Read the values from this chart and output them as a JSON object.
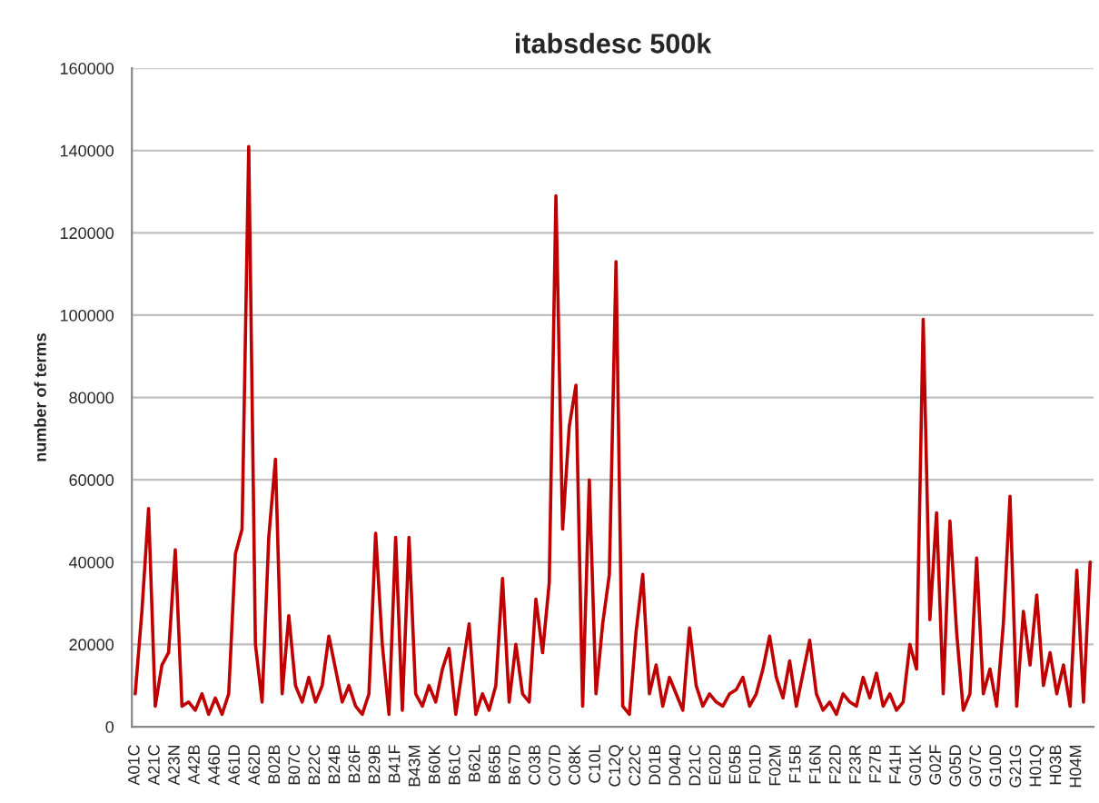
{
  "chart_data": {
    "type": "line",
    "title": "itabsdesc 500k",
    "ylabel": "number of terms",
    "categories": [
      "A01C",
      null,
      null,
      "A21C",
      null,
      null,
      "A23N",
      null,
      null,
      "A42B",
      null,
      null,
      "A46D",
      null,
      null,
      "A61D",
      null,
      null,
      "A62D",
      null,
      null,
      "B02B",
      null,
      null,
      "B07C",
      null,
      null,
      "B22C",
      null,
      null,
      "B24B",
      null,
      null,
      "B26F",
      null,
      null,
      "B29B",
      null,
      null,
      "B41F",
      null,
      null,
      "B43M",
      null,
      null,
      "B60K",
      null,
      null,
      "B61C",
      null,
      null,
      "B62L",
      null,
      null,
      "B65B",
      null,
      null,
      "B67D",
      null,
      null,
      "C03B",
      null,
      null,
      "C07D",
      null,
      null,
      "C08K",
      null,
      null,
      "C10L",
      null,
      null,
      "C12Q",
      null,
      null,
      "C22C",
      null,
      null,
      "D01B",
      null,
      null,
      "D04D",
      null,
      null,
      "D21C",
      null,
      null,
      "E02D",
      null,
      null,
      "E05B",
      null,
      null,
      "F01D",
      null,
      null,
      "F02M",
      null,
      null,
      "F15B",
      null,
      null,
      "F16N",
      null,
      null,
      "F22D",
      null,
      null,
      "F23R",
      null,
      null,
      "F27B",
      null,
      null,
      "F41H",
      null,
      null,
      "G01K",
      null,
      null,
      "G02F",
      null,
      null,
      "G05D",
      null,
      null,
      "G07C",
      null,
      null,
      "G10D",
      null,
      null,
      "G21G",
      null,
      null,
      "H01Q",
      null,
      null,
      "H03B",
      null,
      null,
      "H04M",
      null,
      null
    ],
    "series": [
      {
        "color": "#c00000",
        "values": [
          8000,
          28000,
          53000,
          5000,
          15000,
          18000,
          43000,
          5000,
          6000,
          4000,
          8000,
          3000,
          7000,
          3000,
          8000,
          42000,
          48000,
          141000,
          20000,
          6000,
          46000,
          65000,
          8000,
          27000,
          10000,
          6000,
          12000,
          6000,
          10000,
          22000,
          14000,
          6000,
          10000,
          5000,
          3000,
          8000,
          47000,
          20000,
          3000,
          46000,
          4000,
          46000,
          8000,
          5000,
          10000,
          6000,
          14000,
          19000,
          3000,
          14000,
          25000,
          3000,
          8000,
          4000,
          10000,
          36000,
          6000,
          20000,
          8000,
          6000,
          31000,
          18000,
          35000,
          129000,
          48000,
          73000,
          83000,
          5000,
          60000,
          8000,
          25000,
          37000,
          113000,
          5000,
          3000,
          23000,
          37000,
          8000,
          15000,
          5000,
          12000,
          8000,
          4000,
          24000,
          10000,
          5000,
          8000,
          6000,
          5000,
          8000,
          9000,
          12000,
          5000,
          8000,
          14000,
          22000,
          12000,
          7000,
          16000,
          5000,
          13000,
          21000,
          8000,
          4000,
          6000,
          3000,
          8000,
          6000,
          5000,
          12000,
          7000,
          13000,
          5000,
          8000,
          4000,
          6000,
          20000,
          14000,
          99000,
          26000,
          52000,
          8000,
          50000,
          23000,
          4000,
          8000,
          41000,
          8000,
          14000,
          5000,
          25000,
          56000,
          5000,
          28000,
          15000,
          32000,
          10000,
          18000,
          8000,
          15000,
          5000,
          38000,
          6000,
          40000
        ]
      }
    ],
    "ylim": [
      0,
      160000
    ],
    "yticks": [
      0,
      20000,
      40000,
      60000,
      80000,
      100000,
      120000,
      140000,
      160000
    ],
    "grid": "y",
    "legend": false,
    "marker": "none",
    "line_style": "solid"
  }
}
